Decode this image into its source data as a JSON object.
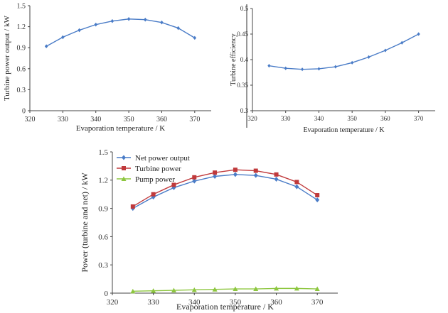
{
  "chart_data": [
    {
      "id": "turbine-power",
      "type": "line",
      "xlabel": "Evaporation temperature / K",
      "ylabel": "Turbine power output / kW",
      "xlim": [
        320,
        375
      ],
      "ylim": [
        0,
        1.5
      ],
      "xticks": [
        320,
        330,
        340,
        350,
        360,
        370
      ],
      "yticks": [
        0,
        0.3,
        0.6,
        0.9,
        1.2,
        1.5
      ],
      "ytick_labels": [
        "0",
        "0.3",
        "0.6",
        "0.9",
        "1.2",
        "1.5"
      ],
      "grid": false,
      "legend": "none",
      "series": [
        {
          "color": "#4a7cc7",
          "marker": "diamond",
          "x": [
            325,
            330,
            335,
            340,
            345,
            350,
            355,
            360,
            365,
            370
          ],
          "y": [
            0.92,
            1.05,
            1.15,
            1.23,
            1.28,
            1.31,
            1.3,
            1.26,
            1.18,
            1.04
          ]
        }
      ]
    },
    {
      "id": "turbine-efficiency",
      "type": "line",
      "xlabel": "Evaporation temperature / K",
      "ylabel": "Turbine efficiency",
      "xlim": [
        320,
        375
      ],
      "ylim": [
        0.3,
        0.5
      ],
      "xticks": [
        320,
        330,
        340,
        350,
        360,
        370
      ],
      "yticks": [
        0.3,
        0.35,
        0.4,
        0.45,
        0.5
      ],
      "ytick_labels": [
        "0.3",
        "0.35",
        "0.4",
        "0.45",
        "0.5"
      ],
      "grid": false,
      "legend": "none",
      "series": [
        {
          "color": "#4a7cc7",
          "marker": "diamond",
          "x": [
            325,
            330,
            335,
            340,
            345,
            350,
            355,
            360,
            365,
            370
          ],
          "y": [
            0.388,
            0.383,
            0.381,
            0.382,
            0.386,
            0.394,
            0.405,
            0.418,
            0.433,
            0.45
          ]
        }
      ]
    },
    {
      "id": "combined-power",
      "type": "line",
      "xlabel": "Evaporation temperature / K",
      "ylabel": "Power (turbine and net) / kW",
      "xlim": [
        320,
        375
      ],
      "ylim": [
        0,
        1.5
      ],
      "xticks": [
        320,
        330,
        340,
        350,
        360,
        370
      ],
      "yticks": [
        0,
        0.3,
        0.6,
        0.9,
        1.2,
        1.5
      ],
      "ytick_labels": [
        "0",
        "0.3",
        "0.6",
        "0.9",
        "1.2",
        "1.5"
      ],
      "grid": false,
      "legend": "top-left",
      "series": [
        {
          "name": "Net power output",
          "color": "#4a7cc7",
          "marker": "diamond",
          "x": [
            325,
            330,
            335,
            340,
            345,
            350,
            355,
            360,
            365,
            370
          ],
          "y": [
            0.9,
            1.02,
            1.12,
            1.19,
            1.24,
            1.26,
            1.25,
            1.21,
            1.13,
            0.99
          ]
        },
        {
          "name": "Turbine power",
          "color": "#c0393b",
          "marker": "square",
          "x": [
            325,
            330,
            335,
            340,
            345,
            350,
            355,
            360,
            365,
            370
          ],
          "y": [
            0.92,
            1.05,
            1.15,
            1.23,
            1.28,
            1.31,
            1.3,
            1.26,
            1.18,
            1.04
          ]
        },
        {
          "name": "Pump power",
          "color": "#8dc63f",
          "marker": "triangle",
          "x": [
            325,
            330,
            335,
            340,
            345,
            350,
            355,
            360,
            365,
            370
          ],
          "y": [
            0.02,
            0.025,
            0.03,
            0.035,
            0.04,
            0.045,
            0.045,
            0.05,
            0.05,
            0.045
          ]
        }
      ]
    }
  ]
}
